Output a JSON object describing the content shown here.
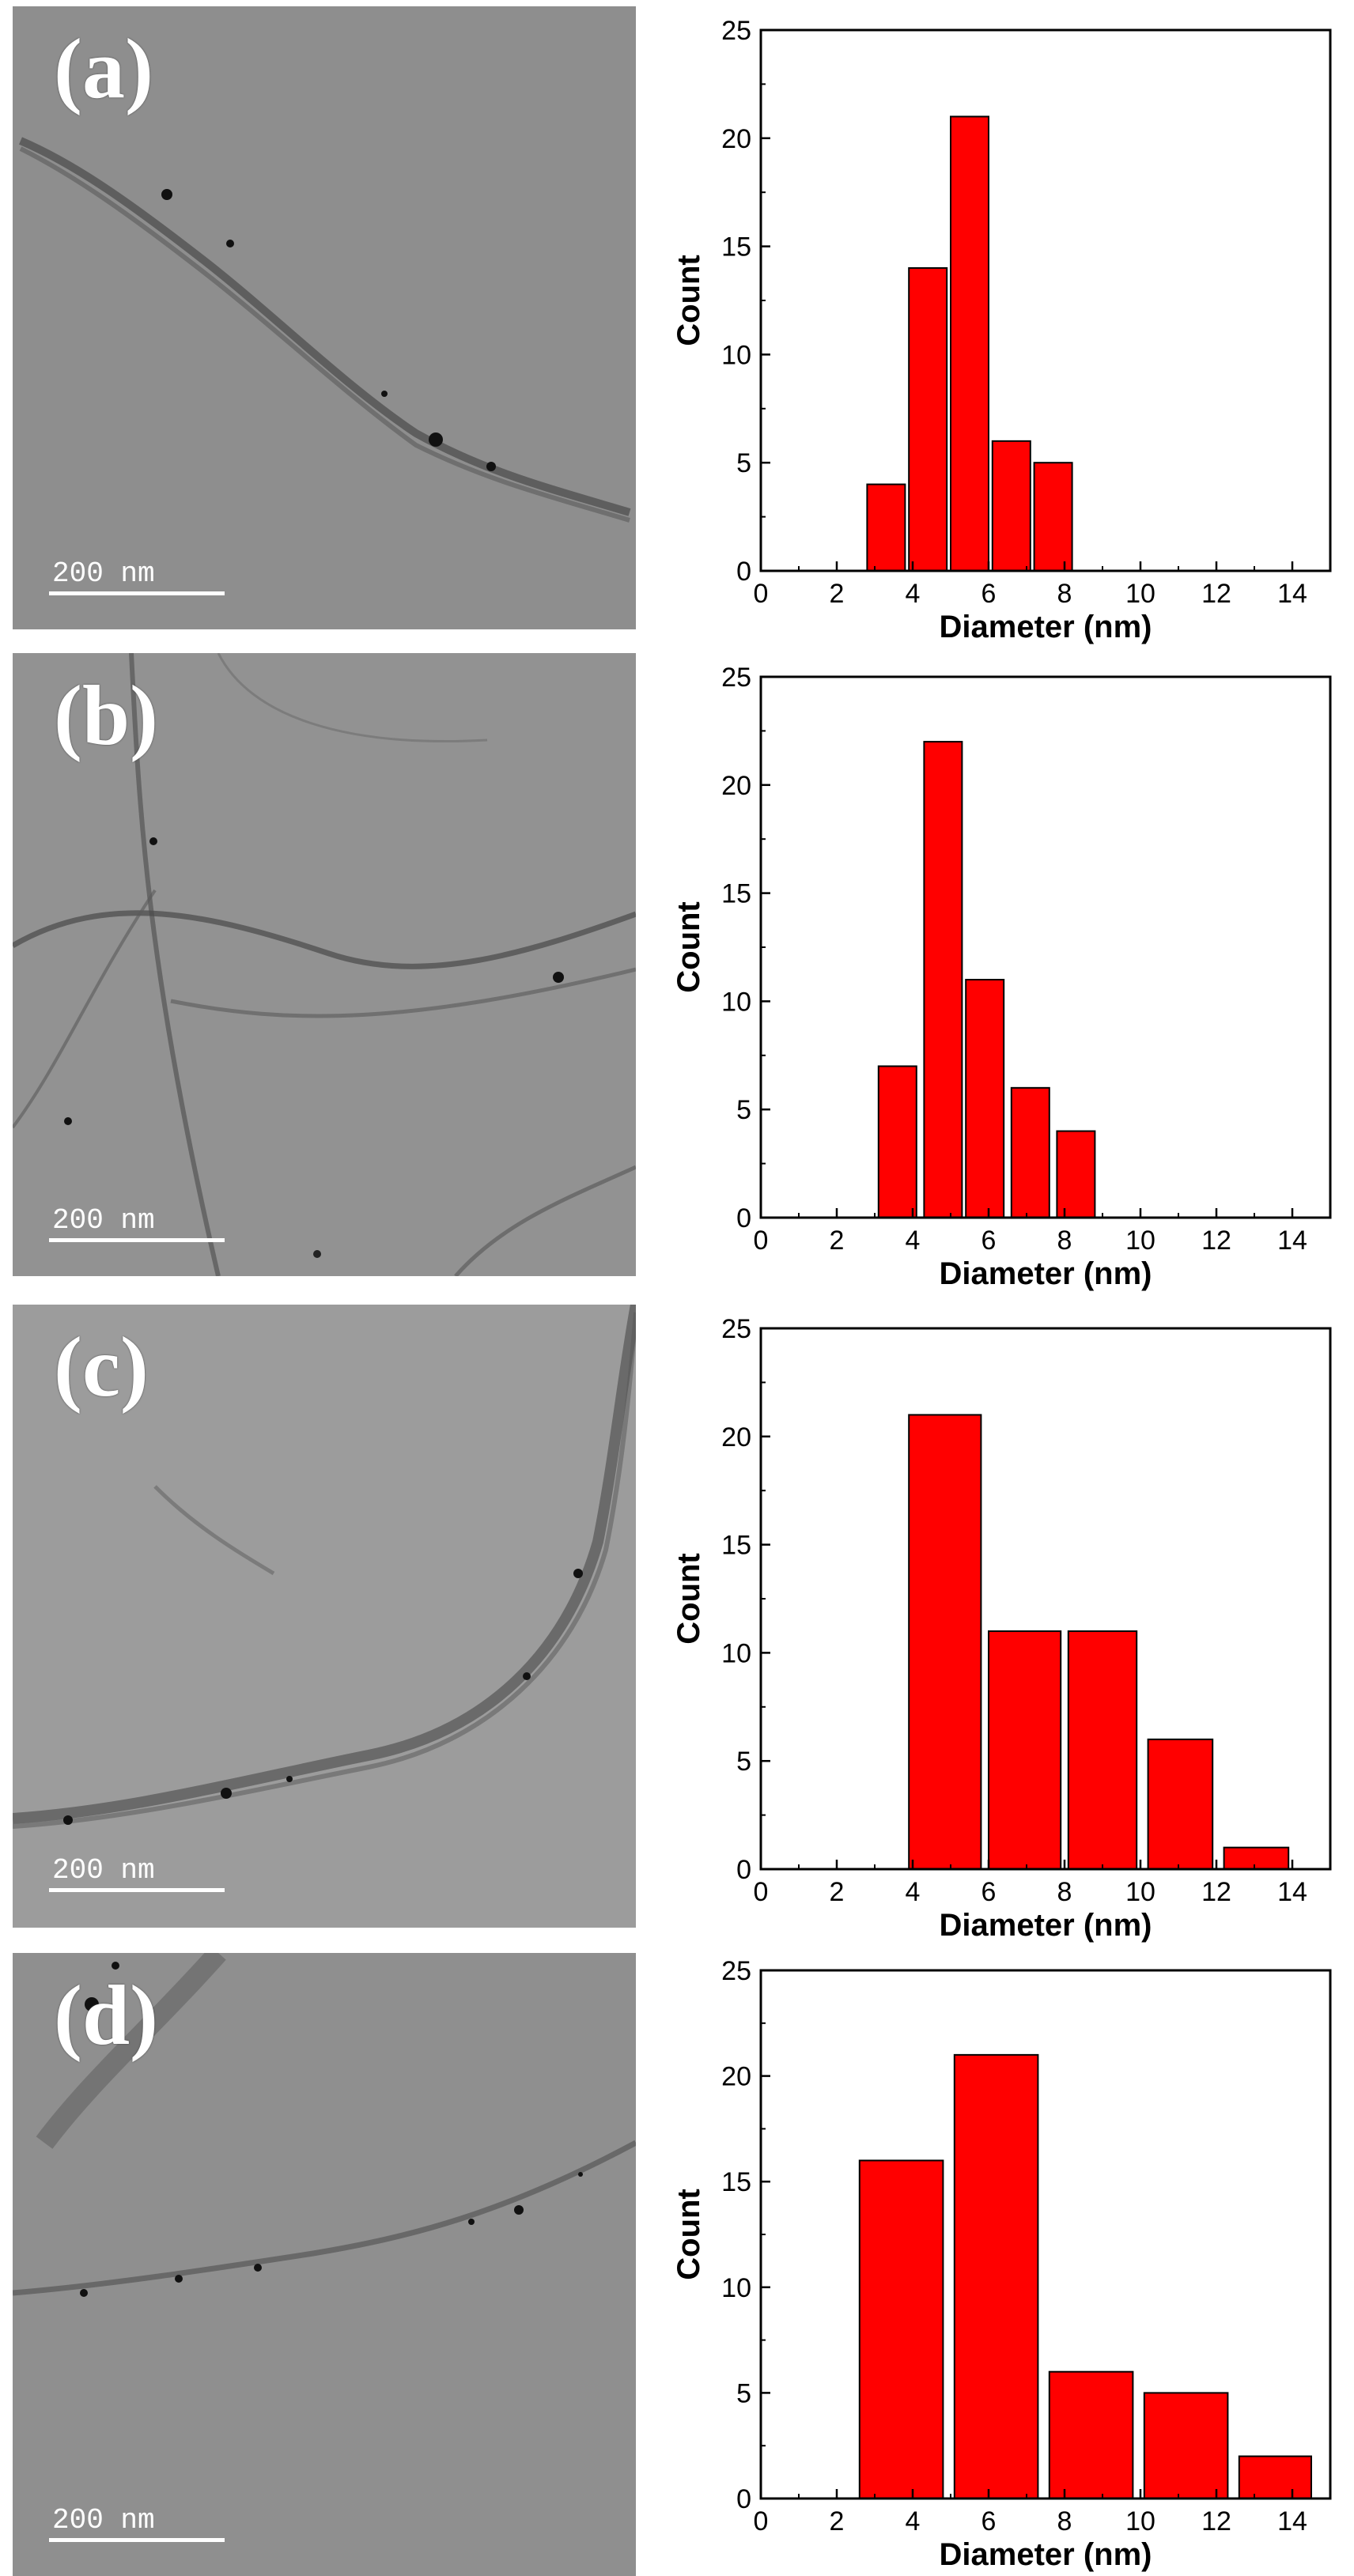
{
  "panels": [
    {
      "label": "(a)",
      "scale_bar_text": "200 nm",
      "chart_data": {
        "type": "bar",
        "xlabel": "Diameter (nm)",
        "ylabel": "Count",
        "xlim": [
          0,
          15
        ],
        "ylim": [
          0,
          25
        ],
        "xticks": [
          0,
          2,
          4,
          6,
          8,
          10,
          12,
          14
        ],
        "yticks": [
          0,
          5,
          10,
          15,
          20,
          25
        ],
        "bar_color": "#ff0000",
        "bins": [
          {
            "x0": 2.8,
            "x1": 3.8,
            "count": 4
          },
          {
            "x0": 3.9,
            "x1": 4.9,
            "count": 14
          },
          {
            "x0": 5.0,
            "x1": 6.0,
            "count": 21
          },
          {
            "x0": 6.1,
            "x1": 7.1,
            "count": 6
          },
          {
            "x0": 7.2,
            "x1": 8.2,
            "count": 5
          }
        ]
      }
    },
    {
      "label": "(b)",
      "scale_bar_text": "200 nm",
      "chart_data": {
        "type": "bar",
        "xlabel": "Diameter (nm)",
        "ylabel": "Count",
        "xlim": [
          0,
          15
        ],
        "ylim": [
          0,
          25
        ],
        "xticks": [
          0,
          2,
          4,
          6,
          8,
          10,
          12,
          14
        ],
        "yticks": [
          0,
          5,
          10,
          15,
          20,
          25
        ],
        "bar_color": "#ff0000",
        "bins": [
          {
            "x0": 3.1,
            "x1": 4.1,
            "count": 7
          },
          {
            "x0": 4.3,
            "x1": 5.3,
            "count": 22
          },
          {
            "x0": 5.4,
            "x1": 6.4,
            "count": 11
          },
          {
            "x0": 6.6,
            "x1": 7.6,
            "count": 6
          },
          {
            "x0": 7.8,
            "x1": 8.8,
            "count": 4
          }
        ]
      }
    },
    {
      "label": "(c)",
      "scale_bar_text": "200 nm",
      "chart_data": {
        "type": "bar",
        "xlabel": "Diameter (nm)",
        "ylabel": "Count",
        "xlim": [
          0,
          15
        ],
        "ylim": [
          0,
          25
        ],
        "xticks": [
          0,
          2,
          4,
          6,
          8,
          10,
          12,
          14
        ],
        "yticks": [
          0,
          5,
          10,
          15,
          20,
          25
        ],
        "bar_color": "#ff0000",
        "bins": [
          {
            "x0": 3.9,
            "x1": 5.8,
            "count": 21
          },
          {
            "x0": 6.0,
            "x1": 7.9,
            "count": 11
          },
          {
            "x0": 8.1,
            "x1": 9.9,
            "count": 11
          },
          {
            "x0": 10.2,
            "x1": 11.9,
            "count": 6
          },
          {
            "x0": 12.2,
            "x1": 13.9,
            "count": 1
          }
        ]
      }
    },
    {
      "label": "(d)",
      "scale_bar_text": "200 nm",
      "chart_data": {
        "type": "bar",
        "xlabel": "Diameter (nm)",
        "ylabel": "Count",
        "xlim": [
          0,
          15
        ],
        "ylim": [
          0,
          25
        ],
        "xticks": [
          0,
          2,
          4,
          6,
          8,
          10,
          12,
          14
        ],
        "yticks": [
          0,
          5,
          10,
          15,
          20,
          25
        ],
        "bar_color": "#ff0000",
        "bins": [
          {
            "x0": 2.6,
            "x1": 4.8,
            "count": 16
          },
          {
            "x0": 5.1,
            "x1": 7.3,
            "count": 21
          },
          {
            "x0": 7.6,
            "x1": 9.8,
            "count": 6
          },
          {
            "x0": 10.1,
            "x1": 12.3,
            "count": 5
          },
          {
            "x0": 12.6,
            "x1": 14.5,
            "count": 2
          }
        ]
      }
    }
  ]
}
